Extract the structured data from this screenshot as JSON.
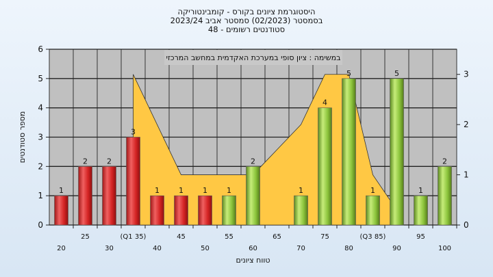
{
  "title": {
    "line1": "היסטוגרמת ציונים בקורס - קומבינטוריקה",
    "line2": "בסמסטר  (02/2023)  סמסטר אביב 2023/24",
    "line3": "סטודנטים רשומים - 48"
  },
  "chart_data": {
    "type": "bar",
    "title": "היסטוגרמת ציונים בקורס - קומבינטוריקה",
    "annotation": "במשימה : ציון סופי במערכת האקדמית במחשב המרכזי",
    "xlabel": "טווח ציונים",
    "ylabel": "מספר סטודנטים",
    "ylim": [
      0,
      6
    ],
    "y2lim": [
      0,
      3.5
    ],
    "grid": true,
    "categories": [
      "20",
      "25",
      "30",
      "(Q1 35)",
      "40",
      "45",
      "50",
      "55",
      "60",
      "65",
      "70",
      "75",
      "80",
      "(Q3 85)",
      "90",
      "95",
      "100"
    ],
    "values": [
      1,
      2,
      2,
      3,
      1,
      1,
      1,
      1,
      2,
      0,
      1,
      4,
      5,
      1,
      5,
      1,
      2
    ],
    "bar_colors": [
      "red",
      "red",
      "red",
      "red",
      "red",
      "red",
      "red",
      "green",
      "green",
      "green",
      "green",
      "green",
      "green",
      "green",
      "green",
      "green",
      "green"
    ],
    "area_values": [
      null,
      null,
      null,
      3.0,
      2.0,
      1.0,
      1.0,
      1.0,
      1.0,
      1.5,
      2.0,
      3.0,
      3.0,
      1.0,
      0.3,
      null,
      null
    ],
    "y_ticks": [
      0,
      1,
      2,
      3,
      4,
      5,
      6
    ],
    "y2_ticks": [
      0,
      1,
      2,
      3
    ],
    "colors": {
      "red": "#e03030",
      "green": "#8cc43c",
      "area": "#ffc844",
      "plot_bg": "#c0c0c0"
    }
  }
}
